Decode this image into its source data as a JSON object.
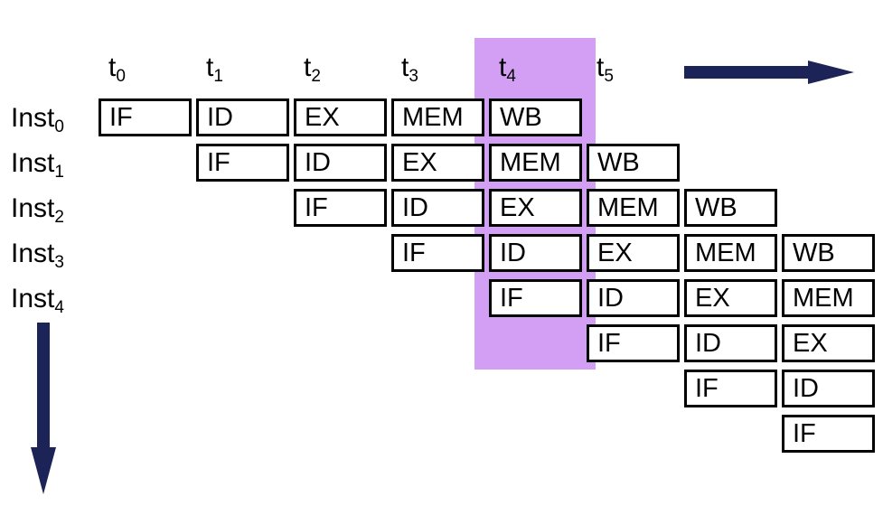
{
  "time_steps": [
    {
      "base": "t",
      "sub": "0"
    },
    {
      "base": "t",
      "sub": "1"
    },
    {
      "base": "t",
      "sub": "2"
    },
    {
      "base": "t",
      "sub": "3"
    },
    {
      "base": "t",
      "sub": "4"
    },
    {
      "base": "t",
      "sub": "5"
    }
  ],
  "instructions": [
    {
      "base": "Inst",
      "sub": "0"
    },
    {
      "base": "Inst",
      "sub": "1"
    },
    {
      "base": "Inst",
      "sub": "2"
    },
    {
      "base": "Inst",
      "sub": "3"
    },
    {
      "base": "Inst",
      "sub": "4"
    }
  ],
  "stages": [
    "IF",
    "ID",
    "EX",
    "MEM",
    "WB"
  ],
  "pipeline_rows": [
    {
      "start_col": 0,
      "stages": [
        "IF",
        "ID",
        "EX",
        "MEM",
        "WB"
      ]
    },
    {
      "start_col": 1,
      "stages": [
        "IF",
        "ID",
        "EX",
        "MEM",
        "WB"
      ]
    },
    {
      "start_col": 2,
      "stages": [
        "IF",
        "ID",
        "EX",
        "MEM",
        "WB"
      ]
    },
    {
      "start_col": 3,
      "stages": [
        "IF",
        "ID",
        "EX",
        "MEM",
        "WB"
      ]
    },
    {
      "start_col": 4,
      "stages": [
        "IF",
        "ID",
        "EX",
        "MEM"
      ]
    },
    {
      "start_col": 5,
      "stages": [
        "IF",
        "ID",
        "EX"
      ]
    },
    {
      "start_col": 6,
      "stages": [
        "IF",
        "ID"
      ]
    },
    {
      "start_col": 7,
      "stages": [
        "IF"
      ]
    }
  ],
  "highlighted_time_step": 4,
  "colors": {
    "highlight": "#d39ff5",
    "arrow": "#1b2357",
    "border": "#000000"
  }
}
